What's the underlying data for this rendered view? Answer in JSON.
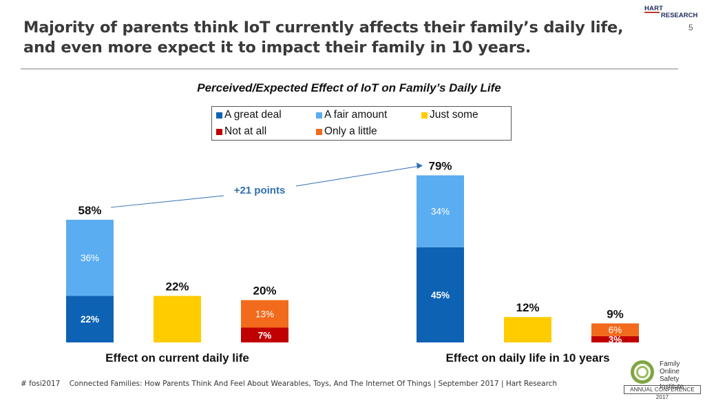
{
  "header": {
    "title": "Majority of parents think IoT currently affects their family’s daily life, and even more expect it to impact their family in 10 years.",
    "page_number": "5",
    "logo_line1": "HART",
    "logo_line2": "RESEARCH"
  },
  "footer": {
    "hashtag": "# fosi2017",
    "source": "Connected Families: How Parents Think And Feel About Wearables, Toys, And The Internet Of Things | September 2017 | Hart Research"
  },
  "fosi_logo": {
    "line1": "Family",
    "line2": "Online Safety",
    "line3": "Institute",
    "conference": "ANNUAL CONFERENCE 2017"
  },
  "legend": [
    {
      "label": "A great deal",
      "color": "#0e62b4"
    },
    {
      "label": "A fair amount",
      "color": "#5aadf0"
    },
    {
      "label": "Just some",
      "color": "#ffcc00"
    },
    {
      "label": "Not at all",
      "color": "#c00000"
    },
    {
      "label": "Only a little",
      "color": "#f26a1b"
    }
  ],
  "chart_data": {
    "type": "bar",
    "title": "Perceived/Expected Effect of IoT on Family’s Daily Life",
    "annotation": "+21 points",
    "ylim": [
      0,
      100
    ],
    "groups": [
      {
        "label": "Effect on current daily life",
        "bars": [
          {
            "total": 58,
            "total_label": "58%",
            "segments": [
              {
                "series": "A great deal",
                "value": 22,
                "label": "22%"
              },
              {
                "series": "A fair amount",
                "value": 36,
                "label": "36%"
              }
            ]
          },
          {
            "total": 22,
            "total_label": "22%",
            "segments": [
              {
                "series": "Just some",
                "value": 22,
                "label": ""
              }
            ]
          },
          {
            "total": 20,
            "total_label": "20%",
            "segments": [
              {
                "series": "Not at all",
                "value": 7,
                "label": "7%"
              },
              {
                "series": "Only a little",
                "value": 13,
                "label": "13%"
              }
            ]
          }
        ]
      },
      {
        "label": "Effect on daily life in 10 years",
        "bars": [
          {
            "total": 79,
            "total_label": "79%",
            "segments": [
              {
                "series": "A great deal",
                "value": 45,
                "label": "45%"
              },
              {
                "series": "A fair amount",
                "value": 34,
                "label": "34%"
              }
            ]
          },
          {
            "total": 12,
            "total_label": "12%",
            "segments": [
              {
                "series": "Just some",
                "value": 12,
                "label": ""
              }
            ]
          },
          {
            "total": 9,
            "total_label": "9%",
            "segments": [
              {
                "series": "Not at all",
                "value": 3,
                "label": "3%"
              },
              {
                "series": "Only a little",
                "value": 6,
                "label": "6%"
              }
            ]
          }
        ]
      }
    ]
  }
}
